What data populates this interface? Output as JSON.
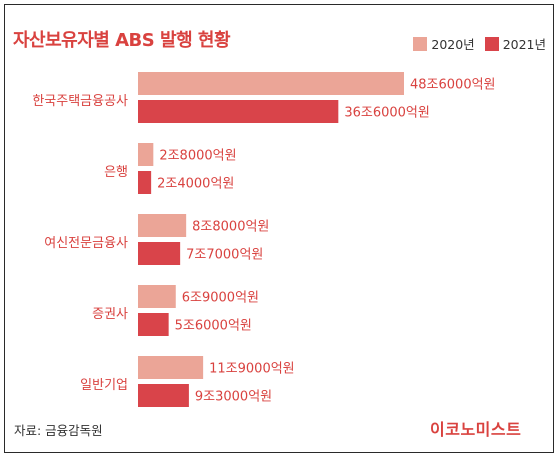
{
  "title": "자산보유자별 ABS 발행 현황",
  "source": "자료: 금융감독원",
  "logo_text": "이코노미스트",
  "colors": {
    "series_2020": "#eba597",
    "series_2021": "#d9444a",
    "title": "#d9423f",
    "category_label": "#d9423f",
    "value_label": "#d9423f"
  },
  "chart_data": {
    "type": "bar",
    "orientation": "horizontal",
    "title": "자산보유자별 ABS 발행 현황",
    "unit": "억원",
    "categories": [
      "한국주택금융공사",
      "은행",
      "여신전문금융사",
      "증권사",
      "일반기업"
    ],
    "series": [
      {
        "name": "2020년",
        "values": [
          486000,
          28000,
          88000,
          69000,
          119000
        ],
        "labels": [
          "48조6000억원",
          "2조8000억원",
          "8조8000억원",
          "6조9000억원",
          "11조9000억원"
        ]
      },
      {
        "name": "2021년",
        "values": [
          366000,
          24000,
          77000,
          56000,
          93000
        ],
        "labels": [
          "36조6000억원",
          "2조4000억원",
          "7조7000억원",
          "5조6000억원",
          "9조3000억원"
        ]
      }
    ],
    "legend": "top-right",
    "grid": false
  }
}
